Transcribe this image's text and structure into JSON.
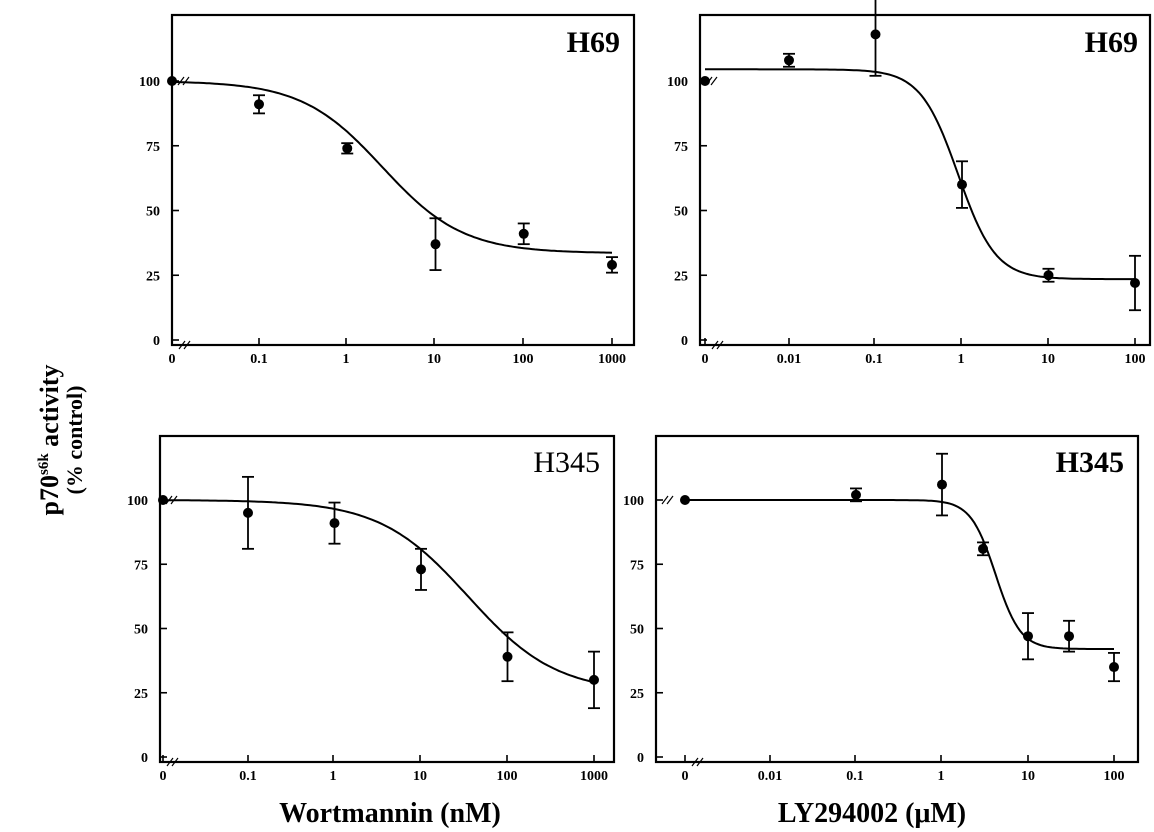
{
  "figure": {
    "ylabel_main": "p70",
    "ylabel_sup": "s6k",
    "ylabel_rest": " activity",
    "ylabel_sub": "(% control)",
    "xtitle_left": "Wortmannin (nM)",
    "xtitle_right": "LY294002 (μM)"
  },
  "chart_data": [
    {
      "type": "scatter",
      "title": "H69",
      "title_style": "bold",
      "xscale": "log-with-zero-break",
      "xticks": [
        "0",
        "0.1",
        "1",
        "10",
        "100",
        "1000"
      ],
      "yticks": [
        "0",
        "25",
        "50",
        "75",
        "100"
      ],
      "ylim": [
        0,
        125
      ],
      "xlabel": "",
      "ylabel": "",
      "series": [
        {
          "x": [
            0,
            0.1,
            1,
            10,
            100,
            1000
          ],
          "y": [
            100,
            91,
            74,
            37,
            41,
            29
          ],
          "err": [
            0,
            3.5,
            2,
            10,
            4,
            3
          ]
        }
      ],
      "fit": {
        "top": 100,
        "bottom": 33.5,
        "ic50": 2.5,
        "hill": 0.95
      }
    },
    {
      "type": "scatter",
      "title": "H69",
      "title_style": "bold",
      "xscale": "log-with-zero-break",
      "xticks": [
        "0",
        "0.01",
        "0.1",
        "1",
        "10",
        "100"
      ],
      "yticks": [
        "0",
        "25",
        "50",
        "75",
        "100"
      ],
      "ylim": [
        0,
        125
      ],
      "xlabel": "",
      "ylabel": "",
      "series": [
        {
          "x": [
            0,
            0.01,
            0.1,
            1,
            10,
            100
          ],
          "y": [
            100,
            108,
            118,
            60,
            25,
            22
          ],
          "err": [
            0,
            2.5,
            16,
            9,
            2.5,
            10.5
          ]
        }
      ],
      "fit": {
        "top": 104.5,
        "bottom": 23.5,
        "ic50": 0.9,
        "hill": 2.0
      }
    },
    {
      "type": "scatter",
      "title": "H345",
      "title_style": "normal",
      "xscale": "log-with-zero-break",
      "xticks": [
        "0",
        "0.1",
        "1",
        "10",
        "100",
        "1000"
      ],
      "yticks": [
        "0",
        "25",
        "50",
        "75",
        "100"
      ],
      "ylim": [
        0,
        125
      ],
      "xlabel": "Wortmannin (nM)",
      "ylabel": "",
      "series": [
        {
          "x": [
            0,
            0.1,
            1,
            10,
            100,
            1000
          ],
          "y": [
            100,
            95,
            91,
            73,
            39,
            30
          ],
          "err": [
            0,
            14,
            8,
            8,
            9.5,
            11
          ]
        }
      ],
      "fit": {
        "top": 100,
        "bottom": 25,
        "ic50": 35,
        "hill": 0.85
      }
    },
    {
      "type": "scatter",
      "title": "H345",
      "title_style": "bold",
      "xscale": "log-with-zero-break",
      "xticks": [
        "0",
        "0.01",
        "0.1",
        "1",
        "10",
        "100"
      ],
      "yticks": [
        "0",
        "25",
        "50",
        "75",
        "100"
      ],
      "ylim": [
        0,
        125
      ],
      "xlabel": "LY294002 (μM)",
      "ylabel": "",
      "series": [
        {
          "x": [
            0,
            0.1,
            1,
            3,
            10,
            30,
            100
          ],
          "y": [
            100,
            102,
            106,
            81,
            47,
            47,
            35
          ],
          "err": [
            0,
            2.5,
            12,
            2.5,
            9,
            6,
            5.5
          ]
        }
      ],
      "fit": {
        "top": 100,
        "bottom": 42,
        "ic50": 4.2,
        "hill": 3.0
      }
    }
  ]
}
